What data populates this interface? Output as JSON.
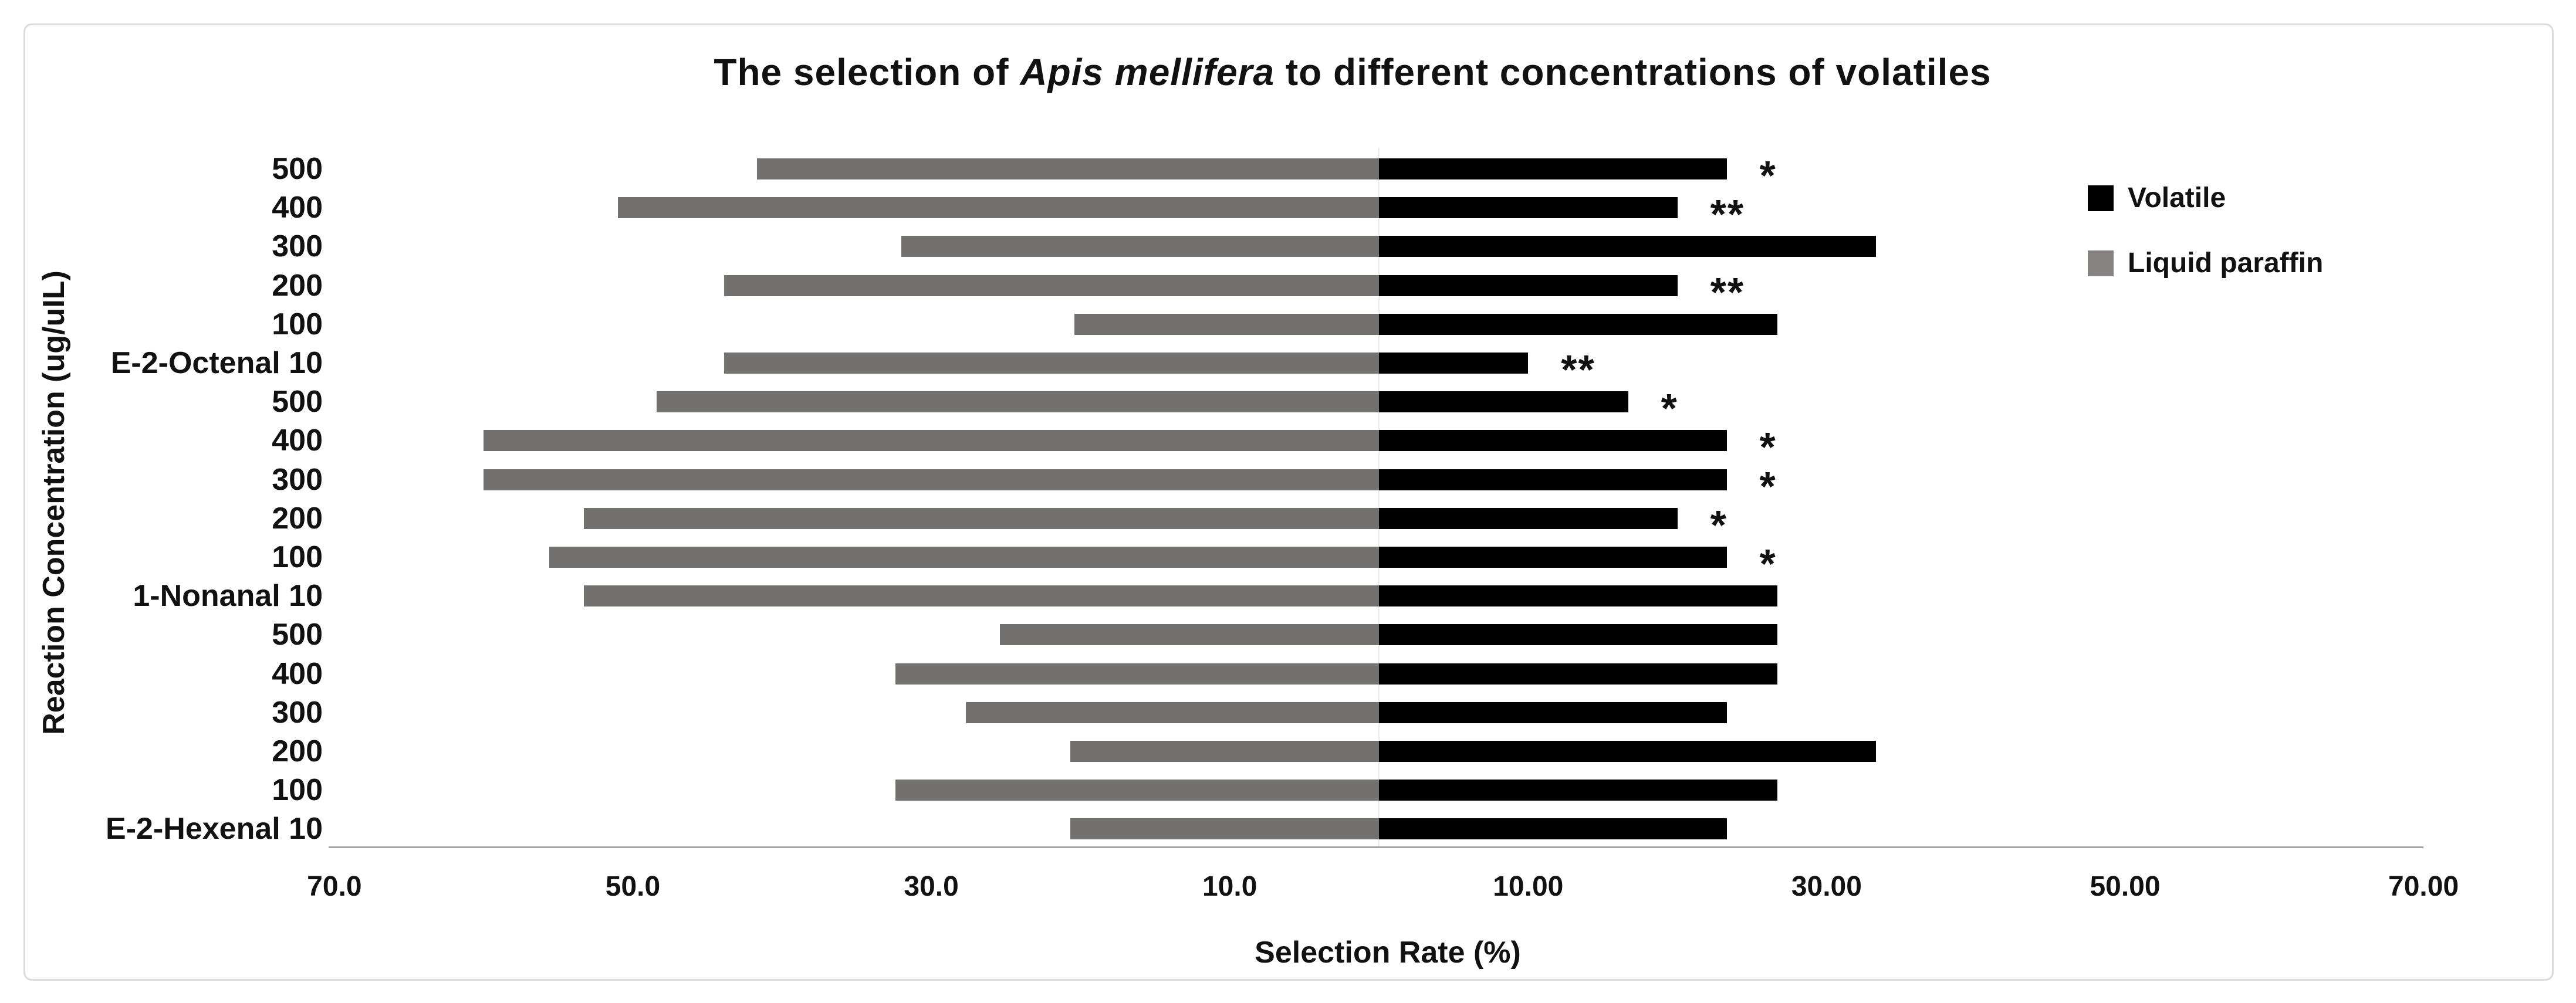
{
  "chart_data": {
    "type": "bar",
    "orientation": "horizontal-diverging",
    "title": "The selection of Apis mellifera to different concentrations of volatiles",
    "title_parts": {
      "pre": "The selection of ",
      "italic": "Apis mellifera",
      "post": " to different concentrations of volatiles"
    },
    "xlabel": "Selection Rate (%)",
    "ylabel": "Reaction Concentration (ug/uIL)",
    "xlim": [
      -70,
      70
    ],
    "grid": false,
    "legend_position": "right",
    "x_ticks_left": [
      "70.0",
      "50.0",
      "30.0",
      "10.0"
    ],
    "x_ticks_right": [
      "10.00",
      "30.00",
      "50.00",
      "70.00"
    ],
    "categories": [
      "500",
      "400",
      "300",
      "200",
      "100",
      "E-2-Octenal 10",
      "500",
      "400",
      "300",
      "200",
      "100",
      "1-Nonanal 10",
      "500",
      "400",
      "300",
      "200",
      "100",
      "E-2-Hexenal 10"
    ],
    "series": [
      {
        "name": "Volatile",
        "side": "right",
        "color": "#000000",
        "values": [
          23.3,
          20.0,
          33.3,
          20.0,
          26.7,
          10.0,
          16.7,
          23.3,
          23.3,
          20.0,
          23.3,
          26.7,
          26.7,
          26.7,
          23.3,
          33.3,
          26.7,
          23.3
        ]
      },
      {
        "name": "Liquid paraffin",
        "side": "left",
        "color": "#737070",
        "values": [
          41.7,
          51.0,
          32.0,
          43.9,
          20.4,
          43.9,
          48.4,
          60.0,
          60.0,
          53.3,
          55.6,
          53.3,
          25.4,
          32.4,
          27.7,
          20.7,
          32.4,
          20.7
        ]
      }
    ],
    "significance": [
      "*",
      "**",
      "",
      "**",
      "",
      "**",
      "*",
      "*",
      "*",
      "*",
      "*",
      "",
      "",
      "",
      "",
      "",
      "",
      ""
    ],
    "legend": [
      {
        "label": "Volatile",
        "color": "#000000"
      },
      {
        "label": "Liquid paraffin",
        "color": "#878282"
      }
    ]
  }
}
